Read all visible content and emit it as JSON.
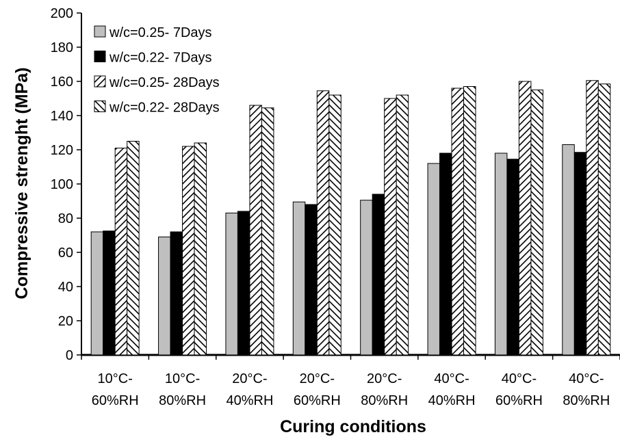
{
  "chart_data": {
    "type": "bar",
    "xlabel": "Curing conditions",
    "ylabel": "Compressive strenght (MPa)",
    "ylim": [
      0,
      200
    ],
    "yticks": [
      0,
      20,
      40,
      60,
      80,
      100,
      120,
      140,
      160,
      180,
      200
    ],
    "grid": false,
    "legend_position": "top-left",
    "categories": [
      [
        "10°C-",
        "60%RH"
      ],
      [
        "10°C-",
        "80%RH"
      ],
      [
        "20°C-",
        "40%RH"
      ],
      [
        "20°C-",
        "60%RH"
      ],
      [
        "20°C-",
        "80%RH"
      ],
      [
        "40°C-",
        "40%RH"
      ],
      [
        "40°C-",
        "60%RH"
      ],
      [
        "40°C-",
        "80%RH"
      ]
    ],
    "series": [
      {
        "name": "w/c=0.25- 7Days",
        "fill": "gray",
        "values": [
          72,
          69,
          83,
          89.5,
          90.5,
          112,
          118,
          123
        ]
      },
      {
        "name": "w/c=0.22- 7Days",
        "fill": "black",
        "values": [
          72.5,
          72,
          84,
          88,
          94,
          118,
          114.5,
          118.5
        ]
      },
      {
        "name": "w/c=0.25- 28Days",
        "fill": "hatch-forward",
        "values": [
          121,
          122,
          146,
          154.5,
          150,
          156,
          160,
          160.5
        ]
      },
      {
        "name": "w/c=0.22- 28Days",
        "fill": "hatch-back",
        "values": [
          125,
          124,
          144.5,
          152,
          152,
          157,
          155,
          158.5
        ]
      }
    ],
    "colors": {
      "gray": "#bfbfbf",
      "black": "#000000",
      "hatch_bg": "#ffffff",
      "hatch_line": "#000000"
    }
  }
}
